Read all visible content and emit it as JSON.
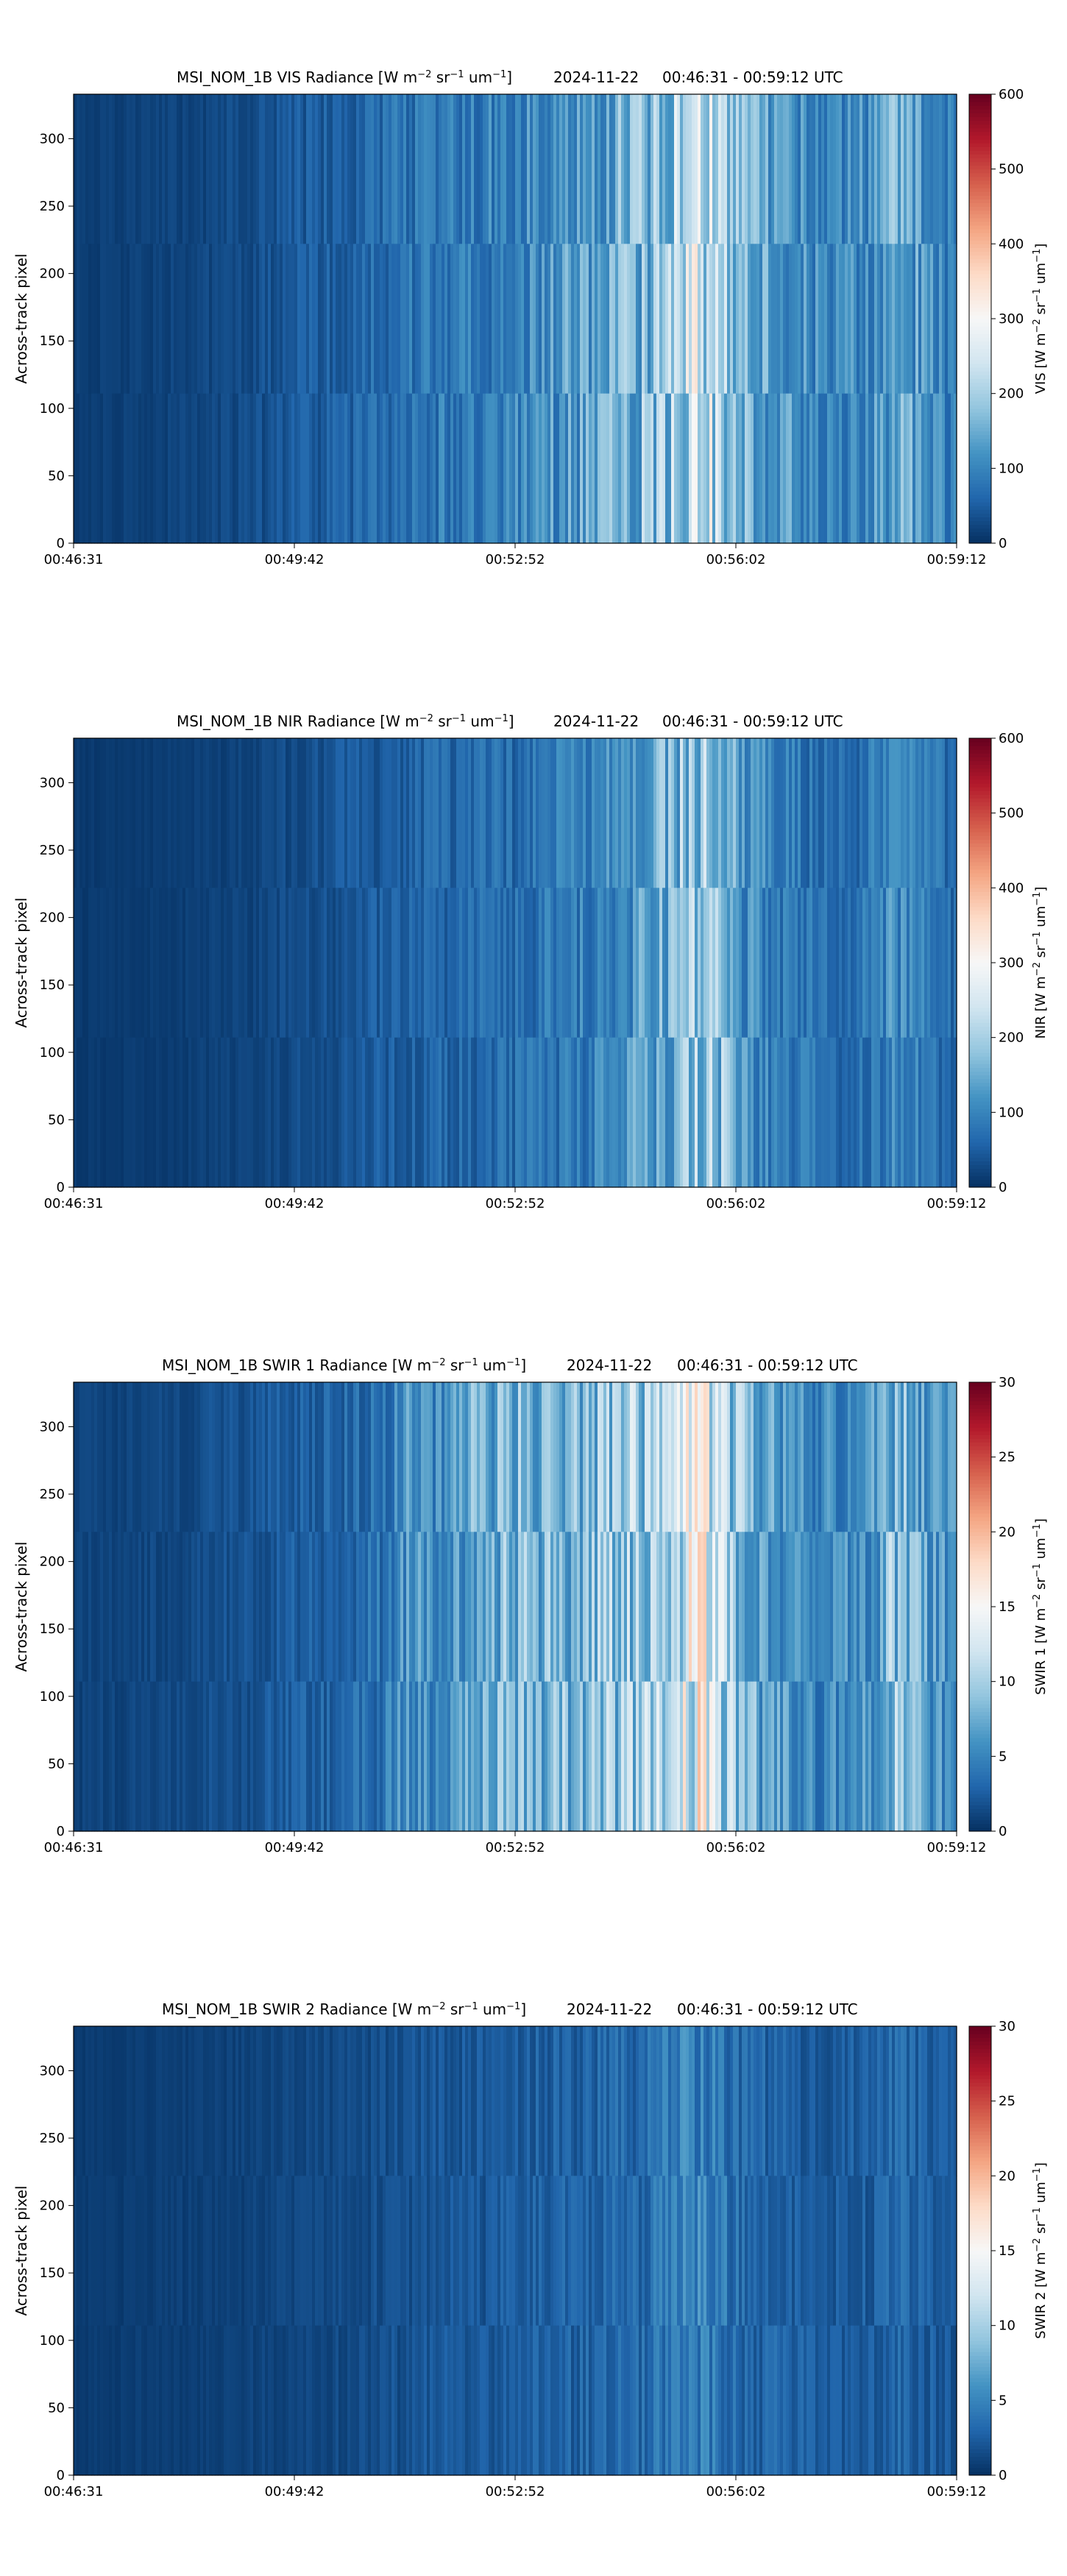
{
  "colors": {
    "colormap": "RdBu_r",
    "cmap_stops": [
      "#053061",
      "#2166ac",
      "#4393c3",
      "#92c5de",
      "#d1e5f0",
      "#f7f7f7",
      "#fddbc7",
      "#f4a582",
      "#d6604d",
      "#b2182b",
      "#67001f"
    ],
    "axis": "#000000",
    "background": "#ffffff"
  },
  "chart_data": [
    {
      "type": "heatmap",
      "title": {
        "prefix": "MSI_NOM_1B VIS Radiance [W m",
        "sup1": "−2",
        "mid1": " sr",
        "sup2": "−1",
        "mid2": " um",
        "sup3": "−1",
        "suffix": "]",
        "date": "2024-11-22",
        "time_range": "00:46:31 - 00:59:12 UTC"
      },
      "ylabel": "Across-track pixel",
      "xlabel": "",
      "x_ticks": [
        "00:46:31",
        "00:49:42",
        "00:52:52",
        "00:56:02",
        "00:59:12"
      ],
      "y_ticks": [
        0,
        50,
        100,
        150,
        200,
        250,
        300
      ],
      "ylim": [
        0,
        333
      ],
      "colorbar": {
        "label": {
          "prefix": "VIS [W m",
          "sup1": "−2",
          "mid1": " sr",
          "sup2": "−1",
          "mid2": " um",
          "sup3": "−1",
          "suffix": "]"
        },
        "ticks": [
          0,
          100,
          200,
          300,
          400,
          500,
          600
        ],
        "range": [
          0,
          600
        ]
      },
      "profile": {
        "x": [
          0,
          0.08,
          0.15,
          0.2,
          0.25,
          0.3,
          0.35,
          0.4,
          0.45,
          0.5,
          0.55,
          0.6,
          0.65,
          0.68,
          0.7,
          0.72,
          0.74,
          0.76,
          0.8,
          0.85,
          0.9,
          0.93,
          0.96,
          1.0
        ],
        "value": [
          15,
          18,
          25,
          30,
          45,
          55,
          70,
          85,
          90,
          100,
          120,
          140,
          170,
          200,
          240,
          230,
          200,
          150,
          130,
          100,
          110,
          150,
          120,
          90
        ]
      }
    },
    {
      "type": "heatmap",
      "title": {
        "prefix": "MSI_NOM_1B NIR Radiance [W m",
        "sup1": "−2",
        "mid1": " sr",
        "sup2": "−1",
        "mid2": " um",
        "sup3": "−1",
        "suffix": "]",
        "date": "2024-11-22",
        "time_range": "00:46:31 - 00:59:12 UTC"
      },
      "ylabel": "Across-track pixel",
      "xlabel": "",
      "x_ticks": [
        "00:46:31",
        "00:49:42",
        "00:52:52",
        "00:56:02",
        "00:59:12"
      ],
      "y_ticks": [
        0,
        50,
        100,
        150,
        200,
        250,
        300
      ],
      "ylim": [
        0,
        333
      ],
      "colorbar": {
        "label": {
          "prefix": "NIR [W m",
          "sup1": "−2",
          "mid1": " sr",
          "sup2": "−1",
          "mid2": " um",
          "sup3": "−1",
          "suffix": "]"
        },
        "ticks": [
          0,
          100,
          200,
          300,
          400,
          500,
          600
        ],
        "range": [
          0,
          600
        ]
      },
      "profile": {
        "x": [
          0,
          0.08,
          0.15,
          0.2,
          0.25,
          0.3,
          0.35,
          0.4,
          0.45,
          0.5,
          0.55,
          0.6,
          0.65,
          0.68,
          0.7,
          0.72,
          0.74,
          0.76,
          0.8,
          0.85,
          0.9,
          0.93,
          0.96,
          1.0
        ],
        "value": [
          10,
          12,
          18,
          22,
          30,
          40,
          50,
          60,
          65,
          70,
          85,
          100,
          130,
          160,
          200,
          190,
          160,
          110,
          90,
          70,
          80,
          110,
          90,
          60
        ]
      }
    },
    {
      "type": "heatmap",
      "title": {
        "prefix": "MSI_NOM_1B SWIR 1 Radiance [W m",
        "sup1": "−2",
        "mid1": " sr",
        "sup2": "−1",
        "mid2": " um",
        "sup3": "−1",
        "suffix": "]",
        "date": "2024-11-22",
        "time_range": "00:46:31 - 00:59:12 UTC"
      },
      "ylabel": "Across-track pixel",
      "xlabel": "",
      "x_ticks": [
        "00:46:31",
        "00:49:42",
        "00:52:52",
        "00:56:02",
        "00:59:12"
      ],
      "y_ticks": [
        0,
        50,
        100,
        150,
        200,
        250,
        300
      ],
      "ylim": [
        0,
        333
      ],
      "colorbar": {
        "label": {
          "prefix": "SWIR 1 [W m",
          "sup1": "−2",
          "mid1": " sr",
          "sup2": "−1",
          "mid2": " um",
          "sup3": "−1",
          "suffix": "]"
        },
        "ticks": [
          0,
          5,
          10,
          15,
          20,
          25,
          30
        ],
        "range": [
          0,
          30
        ]
      },
      "profile": {
        "x": [
          0,
          0.08,
          0.15,
          0.2,
          0.25,
          0.3,
          0.35,
          0.38,
          0.42,
          0.45,
          0.5,
          0.55,
          0.6,
          0.65,
          0.68,
          0.7,
          0.72,
          0.74,
          0.76,
          0.8,
          0.85,
          0.9,
          0.93,
          0.96,
          1.0
        ],
        "value": [
          1.0,
          1.2,
          1.6,
          2.0,
          2.5,
          3.0,
          4.0,
          6.0,
          5.0,
          7.5,
          8.5,
          8.0,
          9.0,
          10.0,
          11.5,
          14.0,
          13.0,
          11.0,
          8.0,
          6.5,
          5.0,
          6.0,
          9.0,
          7.0,
          5.0
        ]
      }
    },
    {
      "type": "heatmap",
      "title": {
        "prefix": "MSI_NOM_1B SWIR 2 Radiance [W m",
        "sup1": "−2",
        "mid1": " sr",
        "sup2": "−1",
        "mid2": " um",
        "sup3": "−1",
        "suffix": "]",
        "date": "2024-11-22",
        "time_range": "00:46:31 - 00:59:12 UTC"
      },
      "ylabel": "Across-track pixel",
      "xlabel": "",
      "x_ticks": [
        "00:46:31",
        "00:49:42",
        "00:52:52",
        "00:56:02",
        "00:59:12"
      ],
      "y_ticks": [
        0,
        50,
        100,
        150,
        200,
        250,
        300
      ],
      "ylim": [
        0,
        333
      ],
      "colorbar": {
        "label": {
          "prefix": "SWIR 2 [W m",
          "sup1": "−2",
          "mid1": " sr",
          "sup2": "−1",
          "mid2": " um",
          "sup3": "−1",
          "suffix": "]"
        },
        "ticks": [
          0,
          5,
          10,
          15,
          20,
          25,
          30
        ],
        "range": [
          0,
          30
        ]
      },
      "profile": {
        "x": [
          0,
          0.08,
          0.15,
          0.2,
          0.25,
          0.3,
          0.35,
          0.4,
          0.45,
          0.5,
          0.55,
          0.6,
          0.65,
          0.68,
          0.7,
          0.72,
          0.74,
          0.76,
          0.8,
          0.85,
          0.9,
          0.93,
          0.96,
          1.0
        ],
        "value": [
          0.6,
          0.7,
          0.9,
          1.0,
          1.2,
          1.4,
          1.7,
          2.0,
          2.2,
          2.5,
          2.8,
          3.0,
          3.6,
          4.2,
          4.8,
          4.6,
          4.0,
          3.2,
          2.8,
          2.3,
          2.5,
          3.2,
          2.7,
          2.0
        ]
      }
    }
  ]
}
